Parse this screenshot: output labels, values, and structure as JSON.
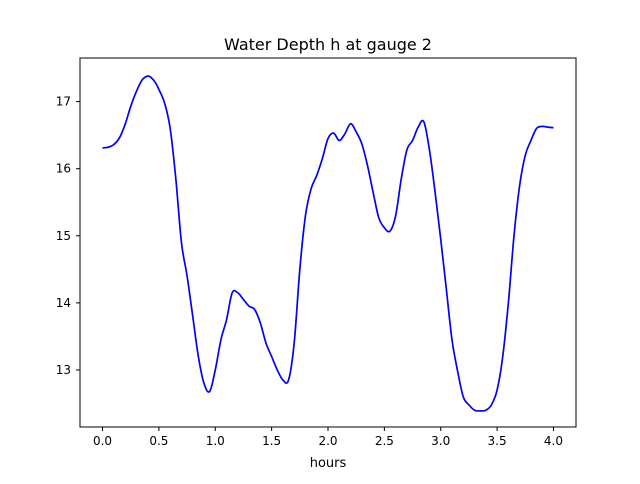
{
  "chart_data": {
    "type": "line",
    "title": "Water Depth h at gauge 2",
    "xlabel": "hours",
    "ylabel": "",
    "xlim": [
      -0.2,
      4.2
    ],
    "ylim": [
      12.15,
      17.65
    ],
    "xticks": [
      0.0,
      0.5,
      1.0,
      1.5,
      2.0,
      2.5,
      3.0,
      3.5,
      4.0
    ],
    "xtick_labels": [
      "0.0",
      "0.5",
      "1.0",
      "1.5",
      "2.0",
      "2.5",
      "3.0",
      "3.5",
      "4.0"
    ],
    "yticks": [
      13,
      14,
      15,
      16,
      17
    ],
    "ytick_labels": [
      "13",
      "14",
      "15",
      "16",
      "17"
    ],
    "grid": false,
    "series": [
      {
        "color": "#0000ff",
        "x": [
          0.0,
          0.05,
          0.1,
          0.15,
          0.2,
          0.25,
          0.3,
          0.35,
          0.4,
          0.43,
          0.47,
          0.5,
          0.55,
          0.6,
          0.65,
          0.7,
          0.75,
          0.8,
          0.85,
          0.9,
          0.95,
          1.0,
          1.05,
          1.1,
          1.15,
          1.2,
          1.25,
          1.3,
          1.35,
          1.4,
          1.45,
          1.5,
          1.55,
          1.6,
          1.65,
          1.7,
          1.75,
          1.8,
          1.85,
          1.9,
          1.95,
          2.0,
          2.05,
          2.1,
          2.15,
          2.2,
          2.25,
          2.3,
          2.35,
          2.4,
          2.45,
          2.5,
          2.55,
          2.6,
          2.65,
          2.7,
          2.75,
          2.8,
          2.85,
          2.9,
          2.95,
          3.0,
          3.05,
          3.1,
          3.15,
          3.2,
          3.25,
          3.3,
          3.35,
          3.4,
          3.45,
          3.5,
          3.55,
          3.6,
          3.65,
          3.7,
          3.75,
          3.8,
          3.85,
          3.9,
          3.95,
          4.0
        ],
        "y": [
          16.31,
          16.32,
          16.36,
          16.46,
          16.66,
          16.93,
          17.15,
          17.32,
          17.38,
          17.36,
          17.28,
          17.18,
          16.98,
          16.6,
          15.85,
          14.9,
          14.4,
          13.8,
          13.2,
          12.8,
          12.68,
          13.0,
          13.45,
          13.75,
          14.15,
          14.15,
          14.05,
          13.95,
          13.9,
          13.7,
          13.4,
          13.2,
          13.0,
          12.85,
          12.85,
          13.4,
          14.5,
          15.3,
          15.7,
          15.9,
          16.15,
          16.45,
          16.53,
          16.42,
          16.52,
          16.67,
          16.55,
          16.37,
          16.05,
          15.65,
          15.27,
          15.12,
          15.07,
          15.3,
          15.85,
          16.28,
          16.42,
          16.62,
          16.7,
          16.28,
          15.65,
          14.95,
          14.2,
          13.45,
          12.98,
          12.6,
          12.48,
          12.4,
          12.39,
          12.4,
          12.48,
          12.7,
          13.2,
          14.0,
          15.0,
          15.75,
          16.2,
          16.42,
          16.6,
          16.63,
          16.62,
          16.61
        ]
      }
    ]
  }
}
